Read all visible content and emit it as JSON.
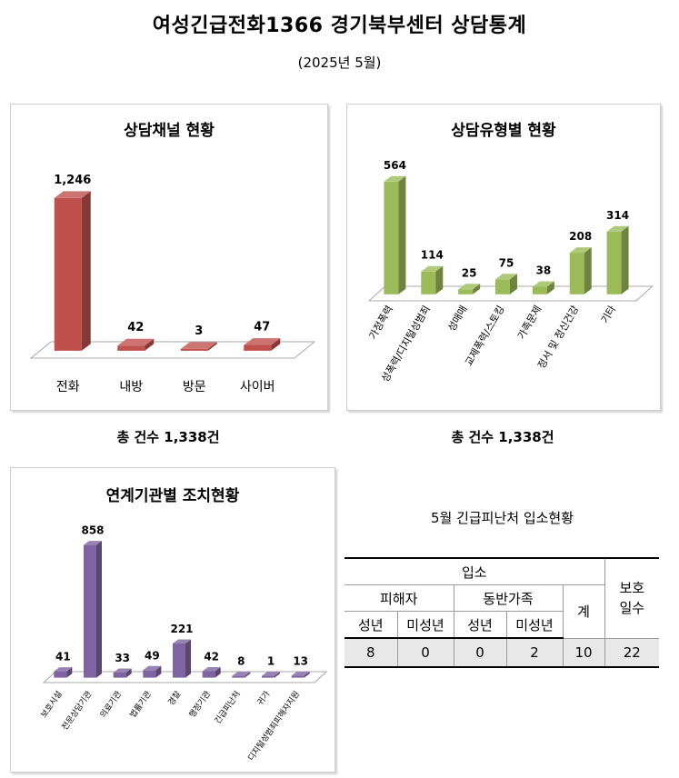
{
  "header": {
    "title": "여성긴급전화1366 경기북부센터 상담통계",
    "subtitle": "(2025년 5월)"
  },
  "colors": {
    "channel_bar": "#c0504d",
    "type_bar": "#9bbb59",
    "agency_bar": "#8064a2"
  },
  "chart_data": [
    {
      "type": "bar",
      "title": "상담채널 현황",
      "categories": [
        "전화",
        "내방",
        "방문",
        "사이버"
      ],
      "values": [
        1246,
        42,
        3,
        47
      ],
      "value_labels": [
        "1,246",
        "42",
        "3",
        "47"
      ]
    },
    {
      "type": "bar",
      "title": "상담유형별 현황",
      "categories": [
        "가정폭력",
        "성폭력/디지털성범죄",
        "성매매",
        "교제폭력/스토킹",
        "가족문제",
        "정서 및 정신건강",
        "기타"
      ],
      "values": [
        564,
        114,
        25,
        75,
        38,
        208,
        314
      ],
      "value_labels": [
        "564",
        "114",
        "25",
        "75",
        "38",
        "208",
        "314"
      ]
    },
    {
      "type": "bar",
      "title": "연계기관별 조치현황",
      "categories": [
        "보호시설",
        "전문상담기관",
        "의료기관",
        "법률기관",
        "경찰",
        "행정기관",
        "긴급피난처",
        "귀가",
        "디지털성범죄피해자지원"
      ],
      "values": [
        41,
        858,
        33,
        49,
        221,
        42,
        8,
        1,
        13
      ],
      "value_labels": [
        "41",
        "858",
        "33",
        "49",
        "221",
        "42",
        "8",
        "1",
        "13"
      ]
    }
  ],
  "totals": {
    "channel": "총 건수 1,338건",
    "type": "총 건수 1,338건"
  },
  "admission": {
    "title": "5월 긴급피난처 입소현황",
    "h_admission": "입소",
    "h_victim": "피해자",
    "h_family": "동반가족",
    "h_total": "계",
    "h_days": "보호\n일수",
    "h_adult": "성년",
    "h_minor": "미성년",
    "values": [
      "8",
      "0",
      "0",
      "2",
      "10",
      "22"
    ]
  }
}
